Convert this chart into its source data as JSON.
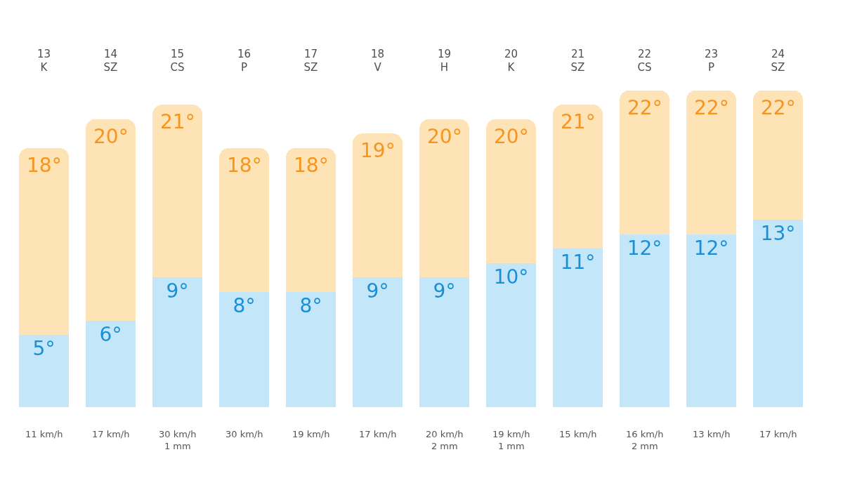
{
  "chart_data": {
    "type": "bar",
    "categories": [
      "13\nK",
      "14\nSZ",
      "15\nCS",
      "16\nP",
      "17\nSZ",
      "18\nV",
      "19\nH",
      "20\nK",
      "21\nSZ",
      "22\nCS",
      "23\nP",
      "24\nSZ"
    ],
    "tick_labels": "x",
    "stacked": true,
    "series": [
      {
        "color": "#c4e6f9",
        "values": [
          5,
          6,
          9,
          8,
          8,
          9,
          9,
          10,
          11,
          12,
          12,
          13
        ],
        "value_labels": [
          "5°",
          "6°",
          "9°",
          "8°",
          "8°",
          "9°",
          "9°",
          "10°",
          "11°",
          "12°",
          "12°",
          "13°"
        ]
      },
      {
        "color": "#fde3b5",
        "values": [
          13,
          14,
          12,
          10,
          10,
          10,
          11,
          10,
          10,
          10,
          10,
          9
        ]
      }
    ],
    "totals": [
      "18°",
      "20°",
      "21°",
      "18°",
      "18°",
      "19°",
      "20°",
      "20°",
      "21°",
      "22°",
      "22°",
      "22°"
    ],
    "annotations": [
      "11 km/h",
      "17 km/h",
      "30 km/h\n1 mm",
      "30 km/h",
      "19 km/h",
      "17 km/h",
      "20 km/h\n2 mm",
      "19 km/h\n1 mm",
      "15 km/h",
      "16 km/h\n2 mm",
      "13 km/h",
      "17 km/h"
    ]
  }
}
